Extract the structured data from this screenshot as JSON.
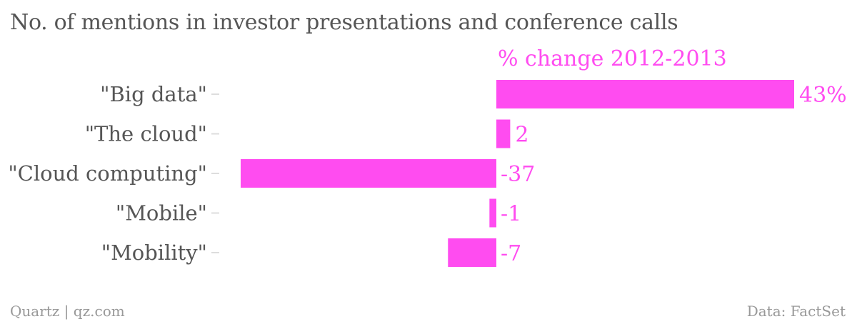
{
  "chart_data": {
    "type": "bar",
    "orientation": "horizontal",
    "title": "No. of mentions in investor presentations and conference calls",
    "series": [
      {
        "name": "% change 2012-2013",
        "values": [
          43,
          2,
          -37,
          -1,
          -7
        ],
        "value_labels": [
          "43%",
          "2",
          "-37",
          "-1",
          "-7"
        ]
      }
    ],
    "categories": [
      "\"Big data\"",
      "\"The cloud\"",
      "\"Cloud computing\"",
      "\"Mobile\"",
      "\"Mobility\""
    ],
    "xlim": [
      -37,
      43
    ],
    "grid": false,
    "colors": {
      "bar": "#ff4cf0",
      "label": "#ff4cf0",
      "category_text": "#555555",
      "tick": "#dddddd"
    }
  },
  "footer": {
    "source_left": "Quartz | qz.com",
    "source_right": "Data: FactSet"
  }
}
